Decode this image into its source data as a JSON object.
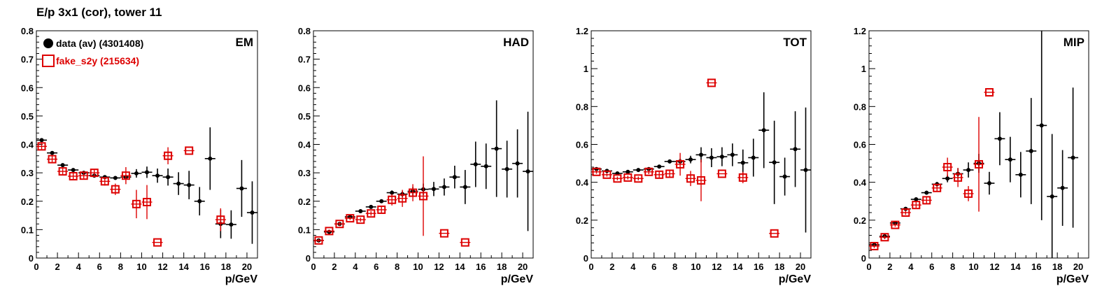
{
  "title": "E/p 3x1 (cor), tower 11",
  "legend": {
    "entries": [
      {
        "label": "data (av) (4301408)",
        "color": "#000000",
        "marker": "filled-circle"
      },
      {
        "label": "fake_s2y (215634)",
        "color": "#dd0000",
        "marker": "open-square"
      }
    ]
  },
  "chart_data": [
    {
      "type": "scatter",
      "title": "EM",
      "xlabel": "p/GeV",
      "xlim": [
        0,
        21
      ],
      "ylim": [
        0,
        0.8
      ],
      "xticks": [
        0,
        2,
        4,
        6,
        8,
        10,
        12,
        14,
        16,
        18,
        20
      ],
      "yticks": [
        0,
        0.1,
        0.2,
        0.3,
        0.4,
        0.5,
        0.6,
        0.7,
        0.8
      ],
      "yticklabels": [
        "0",
        "0.1",
        "0.2",
        "0.3",
        "0.4",
        "0.5",
        "0.6",
        "0.7",
        "0.8"
      ],
      "series": [
        {
          "name": "data (av) (4301408)",
          "points": [
            {
              "x": 0.5,
              "y": 0.415,
              "err": 0.004
            },
            {
              "x": 1.5,
              "y": 0.37,
              "err": 0.004
            },
            {
              "x": 2.5,
              "y": 0.327,
              "err": 0.004
            },
            {
              "x": 3.5,
              "y": 0.31,
              "err": 0.004
            },
            {
              "x": 4.5,
              "y": 0.3,
              "err": 0.004
            },
            {
              "x": 5.5,
              "y": 0.29,
              "err": 0.005
            },
            {
              "x": 6.5,
              "y": 0.285,
              "err": 0.005
            },
            {
              "x": 7.5,
              "y": 0.282,
              "err": 0.006
            },
            {
              "x": 8.5,
              "y": 0.285,
              "err": 0.008
            },
            {
              "x": 9.5,
              "y": 0.298,
              "err": 0.015
            },
            {
              "x": 10.5,
              "y": 0.302,
              "err": 0.02
            },
            {
              "x": 11.5,
              "y": 0.29,
              "err": 0.025
            },
            {
              "x": 12.5,
              "y": 0.285,
              "err": 0.03
            },
            {
              "x": 13.5,
              "y": 0.262,
              "err": 0.04
            },
            {
              "x": 14.5,
              "y": 0.257,
              "err": 0.05
            },
            {
              "x": 15.5,
              "y": 0.2,
              "err": 0.05
            },
            {
              "x": 16.5,
              "y": 0.35,
              "err": 0.11
            },
            {
              "x": 17.5,
              "y": 0.12,
              "err": 0.05
            },
            {
              "x": 18.5,
              "y": 0.118,
              "err": 0.05
            },
            {
              "x": 19.5,
              "y": 0.245,
              "err": 0.1
            },
            {
              "x": 20.5,
              "y": 0.16,
              "err": 0.11
            }
          ]
        },
        {
          "name": "fake_s2y (215634)",
          "points": [
            {
              "x": 0.5,
              "y": 0.393,
              "err": 0.01
            },
            {
              "x": 1.5,
              "y": 0.348,
              "err": 0.01
            },
            {
              "x": 2.5,
              "y": 0.305,
              "err": 0.01
            },
            {
              "x": 3.5,
              "y": 0.288,
              "err": 0.01
            },
            {
              "x": 4.5,
              "y": 0.29,
              "err": 0.01
            },
            {
              "x": 5.5,
              "y": 0.3,
              "err": 0.01
            },
            {
              "x": 6.5,
              "y": 0.27,
              "err": 0.015
            },
            {
              "x": 7.5,
              "y": 0.242,
              "err": 0.02
            },
            {
              "x": 8.5,
              "y": 0.29,
              "err": 0.03
            },
            {
              "x": 9.5,
              "y": 0.19,
              "err": 0.05
            },
            {
              "x": 10.5,
              "y": 0.197,
              "err": 0.06
            },
            {
              "x": 11.5,
              "y": 0.055,
              "err": 0.0
            },
            {
              "x": 12.5,
              "y": 0.36,
              "err": 0.03
            },
            {
              "x": 14.5,
              "y": 0.378,
              "err": 0.0
            },
            {
              "x": 17.5,
              "y": 0.135,
              "err": 0.04
            }
          ]
        }
      ]
    },
    {
      "type": "scatter",
      "title": "HAD",
      "xlabel": "p/GeV",
      "xlim": [
        0,
        21
      ],
      "ylim": [
        0,
        0.8
      ],
      "xticks": [
        0,
        2,
        4,
        6,
        8,
        10,
        12,
        14,
        16,
        18,
        20
      ],
      "yticks": [
        0,
        0.1,
        0.2,
        0.3,
        0.4,
        0.5,
        0.6,
        0.7,
        0.8
      ],
      "yticklabels": [
        "0",
        "0.1",
        "0.2",
        "0.3",
        "0.4",
        "0.5",
        "0.6",
        "0.7",
        "0.8"
      ],
      "series": [
        {
          "name": "data (av) (4301408)",
          "points": [
            {
              "x": 0.5,
              "y": 0.062,
              "err": 0.003
            },
            {
              "x": 1.5,
              "y": 0.092,
              "err": 0.003
            },
            {
              "x": 2.5,
              "y": 0.12,
              "err": 0.003
            },
            {
              "x": 3.5,
              "y": 0.145,
              "err": 0.004
            },
            {
              "x": 4.5,
              "y": 0.165,
              "err": 0.004
            },
            {
              "x": 5.5,
              "y": 0.18,
              "err": 0.005
            },
            {
              "x": 6.5,
              "y": 0.2,
              "err": 0.006
            },
            {
              "x": 7.5,
              "y": 0.23,
              "err": 0.008
            },
            {
              "x": 8.5,
              "y": 0.225,
              "err": 0.01
            },
            {
              "x": 9.5,
              "y": 0.235,
              "err": 0.015
            },
            {
              "x": 10.5,
              "y": 0.242,
              "err": 0.02
            },
            {
              "x": 11.5,
              "y": 0.243,
              "err": 0.025
            },
            {
              "x": 12.5,
              "y": 0.25,
              "err": 0.03
            },
            {
              "x": 13.5,
              "y": 0.285,
              "err": 0.04
            },
            {
              "x": 14.5,
              "y": 0.25,
              "err": 0.06
            },
            {
              "x": 15.5,
              "y": 0.33,
              "err": 0.08
            },
            {
              "x": 16.5,
              "y": 0.323,
              "err": 0.08
            },
            {
              "x": 17.5,
              "y": 0.385,
              "err": 0.17
            },
            {
              "x": 18.5,
              "y": 0.313,
              "err": 0.1
            },
            {
              "x": 19.5,
              "y": 0.333,
              "err": 0.12
            },
            {
              "x": 20.5,
              "y": 0.305,
              "err": 0.21
            }
          ]
        },
        {
          "name": "fake_s2y (215634)",
          "points": [
            {
              "x": 0.5,
              "y": 0.062,
              "err": 0.005
            },
            {
              "x": 1.5,
              "y": 0.095,
              "err": 0.005
            },
            {
              "x": 2.5,
              "y": 0.12,
              "err": 0.006
            },
            {
              "x": 3.5,
              "y": 0.14,
              "err": 0.006
            },
            {
              "x": 4.5,
              "y": 0.135,
              "err": 0.007
            },
            {
              "x": 5.5,
              "y": 0.157,
              "err": 0.008
            },
            {
              "x": 6.5,
              "y": 0.17,
              "err": 0.01
            },
            {
              "x": 7.5,
              "y": 0.205,
              "err": 0.02
            },
            {
              "x": 8.5,
              "y": 0.21,
              "err": 0.03
            },
            {
              "x": 9.5,
              "y": 0.23,
              "err": 0.03
            },
            {
              "x": 10.5,
              "y": 0.218,
              "err": 0.14
            },
            {
              "x": 12.5,
              "y": 0.087,
              "err": 0.0
            },
            {
              "x": 14.5,
              "y": 0.055,
              "err": 0.0
            }
          ]
        }
      ]
    },
    {
      "type": "scatter",
      "title": "TOT",
      "xlabel": "p/GeV",
      "xlim": [
        0,
        21
      ],
      "ylim": [
        0,
        1.2
      ],
      "xticks": [
        0,
        2,
        4,
        6,
        8,
        10,
        12,
        14,
        16,
        18,
        20
      ],
      "yticks": [
        0,
        0.2,
        0.4,
        0.6,
        0.8,
        1.0,
        1.2
      ],
      "yticklabels": [
        "0",
        "0.2",
        "0.4",
        "0.6",
        "0.8",
        "1",
        "1.2"
      ],
      "series": [
        {
          "name": "data (av) (4301408)",
          "points": [
            {
              "x": 0.5,
              "y": 0.47,
              "err": 0.005
            },
            {
              "x": 1.5,
              "y": 0.46,
              "err": 0.005
            },
            {
              "x": 2.5,
              "y": 0.447,
              "err": 0.005
            },
            {
              "x": 3.5,
              "y": 0.455,
              "err": 0.005
            },
            {
              "x": 4.5,
              "y": 0.465,
              "err": 0.006
            },
            {
              "x": 5.5,
              "y": 0.47,
              "err": 0.006
            },
            {
              "x": 6.5,
              "y": 0.483,
              "err": 0.008
            },
            {
              "x": 7.5,
              "y": 0.51,
              "err": 0.01
            },
            {
              "x": 8.5,
              "y": 0.51,
              "err": 0.015
            },
            {
              "x": 9.5,
              "y": 0.52,
              "err": 0.02
            },
            {
              "x": 10.5,
              "y": 0.545,
              "err": 0.04
            },
            {
              "x": 11.5,
              "y": 0.53,
              "err": 0.05
            },
            {
              "x": 12.5,
              "y": 0.535,
              "err": 0.05
            },
            {
              "x": 13.5,
              "y": 0.545,
              "err": 0.06
            },
            {
              "x": 14.5,
              "y": 0.503,
              "err": 0.07
            },
            {
              "x": 15.5,
              "y": 0.53,
              "err": 0.1
            },
            {
              "x": 16.5,
              "y": 0.675,
              "err": 0.2
            },
            {
              "x": 17.5,
              "y": 0.505,
              "err": 0.22
            },
            {
              "x": 18.5,
              "y": 0.43,
              "err": 0.1
            },
            {
              "x": 19.5,
              "y": 0.575,
              "err": 0.2
            },
            {
              "x": 20.5,
              "y": 0.465,
              "err": 0.33
            }
          ]
        },
        {
          "name": "fake_s2y (215634)",
          "points": [
            {
              "x": 0.5,
              "y": 0.455,
              "err": 0.01
            },
            {
              "x": 1.5,
              "y": 0.44,
              "err": 0.01
            },
            {
              "x": 2.5,
              "y": 0.42,
              "err": 0.01
            },
            {
              "x": 3.5,
              "y": 0.425,
              "err": 0.01
            },
            {
              "x": 4.5,
              "y": 0.42,
              "err": 0.01
            },
            {
              "x": 5.5,
              "y": 0.455,
              "err": 0.012
            },
            {
              "x": 6.5,
              "y": 0.44,
              "err": 0.015
            },
            {
              "x": 7.5,
              "y": 0.445,
              "err": 0.02
            },
            {
              "x": 8.5,
              "y": 0.495,
              "err": 0.06
            },
            {
              "x": 9.5,
              "y": 0.42,
              "err": 0.04
            },
            {
              "x": 10.5,
              "y": 0.41,
              "err": 0.11
            },
            {
              "x": 11.5,
              "y": 0.925,
              "err": 0.0
            },
            {
              "x": 12.5,
              "y": 0.445,
              "err": 0.0
            },
            {
              "x": 14.5,
              "y": 0.425,
              "err": 0.03
            },
            {
              "x": 17.5,
              "y": 0.13,
              "err": 0.0
            }
          ]
        }
      ]
    },
    {
      "type": "scatter",
      "title": "MIP",
      "xlabel": "p/GeV",
      "xlim": [
        0,
        21
      ],
      "ylim": [
        0,
        1.2
      ],
      "xticks": [
        0,
        2,
        4,
        6,
        8,
        10,
        12,
        14,
        16,
        18,
        20
      ],
      "yticks": [
        0,
        0.2,
        0.4,
        0.6,
        0.8,
        1.0,
        1.2
      ],
      "yticklabels": [
        "0",
        "0.2",
        "0.4",
        "0.6",
        "0.8",
        "1",
        "1.2"
      ],
      "series": [
        {
          "name": "data (av) (4301408)",
          "points": [
            {
              "x": 0.5,
              "y": 0.07,
              "err": 0.005
            },
            {
              "x": 1.5,
              "y": 0.115,
              "err": 0.005
            },
            {
              "x": 2.5,
              "y": 0.185,
              "err": 0.006
            },
            {
              "x": 3.5,
              "y": 0.26,
              "err": 0.007
            },
            {
              "x": 4.5,
              "y": 0.31,
              "err": 0.008
            },
            {
              "x": 5.5,
              "y": 0.345,
              "err": 0.01
            },
            {
              "x": 6.5,
              "y": 0.39,
              "err": 0.012
            },
            {
              "x": 7.5,
              "y": 0.42,
              "err": 0.02
            },
            {
              "x": 8.5,
              "y": 0.445,
              "err": 0.03
            },
            {
              "x": 9.5,
              "y": 0.465,
              "err": 0.04
            },
            {
              "x": 10.5,
              "y": 0.5,
              "err": 0.05
            },
            {
              "x": 11.5,
              "y": 0.395,
              "err": 0.06
            },
            {
              "x": 12.5,
              "y": 0.63,
              "err": 0.14
            },
            {
              "x": 13.5,
              "y": 0.52,
              "err": 0.12
            },
            {
              "x": 14.5,
              "y": 0.44,
              "err": 0.12
            },
            {
              "x": 15.5,
              "y": 0.565,
              "err": 0.28
            },
            {
              "x": 16.5,
              "y": 0.7,
              "err": 0.5
            },
            {
              "x": 17.5,
              "y": 0.325,
              "err": 0.33
            },
            {
              "x": 18.5,
              "y": 0.37,
              "err": 0.2
            },
            {
              "x": 19.5,
              "y": 0.53,
              "err": 0.37
            }
          ]
        },
        {
          "name": "fake_s2y (215634)",
          "points": [
            {
              "x": 0.5,
              "y": 0.063,
              "err": 0.01
            },
            {
              "x": 1.5,
              "y": 0.11,
              "err": 0.01
            },
            {
              "x": 2.5,
              "y": 0.175,
              "err": 0.01
            },
            {
              "x": 3.5,
              "y": 0.24,
              "err": 0.012
            },
            {
              "x": 4.5,
              "y": 0.28,
              "err": 0.015
            },
            {
              "x": 5.5,
              "y": 0.305,
              "err": 0.02
            },
            {
              "x": 6.5,
              "y": 0.37,
              "err": 0.02
            },
            {
              "x": 7.5,
              "y": 0.48,
              "err": 0.05
            },
            {
              "x": 8.5,
              "y": 0.425,
              "err": 0.05
            },
            {
              "x": 9.5,
              "y": 0.34,
              "err": 0.04
            },
            {
              "x": 10.5,
              "y": 0.495,
              "err": 0.25
            },
            {
              "x": 11.5,
              "y": 0.875,
              "err": 0.0
            }
          ]
        }
      ]
    }
  ]
}
